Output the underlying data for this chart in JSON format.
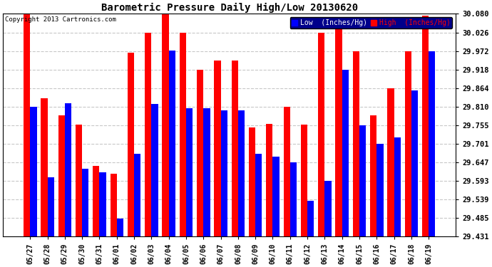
{
  "title": "Barometric Pressure Daily High/Low 20130620",
  "copyright": "Copyright 2013 Cartronics.com",
  "legend_low": "Low  (Inches/Hg)",
  "legend_high": "High  (Inches/Hg)",
  "dates": [
    "05/27",
    "05/28",
    "05/29",
    "05/30",
    "05/31",
    "06/01",
    "06/02",
    "06/03",
    "06/04",
    "06/05",
    "06/06",
    "06/07",
    "06/08",
    "06/09",
    "06/10",
    "06/11",
    "06/12",
    "06/13",
    "06/14",
    "06/15",
    "06/16",
    "06/17",
    "06/18",
    "06/19"
  ],
  "low": [
    29.81,
    29.605,
    29.82,
    29.628,
    29.618,
    29.483,
    29.673,
    29.818,
    29.973,
    29.805,
    29.805,
    29.8,
    29.8,
    29.672,
    29.665,
    29.647,
    29.535,
    29.593,
    29.918,
    29.755,
    29.701,
    29.721,
    29.857,
    29.972
  ],
  "high": [
    30.08,
    29.835,
    29.785,
    29.757,
    29.637,
    29.614,
    29.967,
    30.026,
    30.08,
    30.026,
    29.918,
    29.945,
    29.945,
    29.75,
    29.76,
    29.81,
    29.758,
    30.026,
    30.053,
    29.972,
    29.784,
    29.864,
    29.972,
    30.075
  ],
  "ylim_min": 29.431,
  "ylim_max": 30.08,
  "yticks": [
    29.431,
    29.485,
    29.539,
    29.593,
    29.647,
    29.701,
    29.755,
    29.81,
    29.864,
    29.918,
    29.972,
    30.026,
    30.08
  ],
  "low_color": "#0000ff",
  "high_color": "#ff0000",
  "bg_color": "#ffffff",
  "grid_color": "#c8c8c8",
  "bar_width": 0.38
}
